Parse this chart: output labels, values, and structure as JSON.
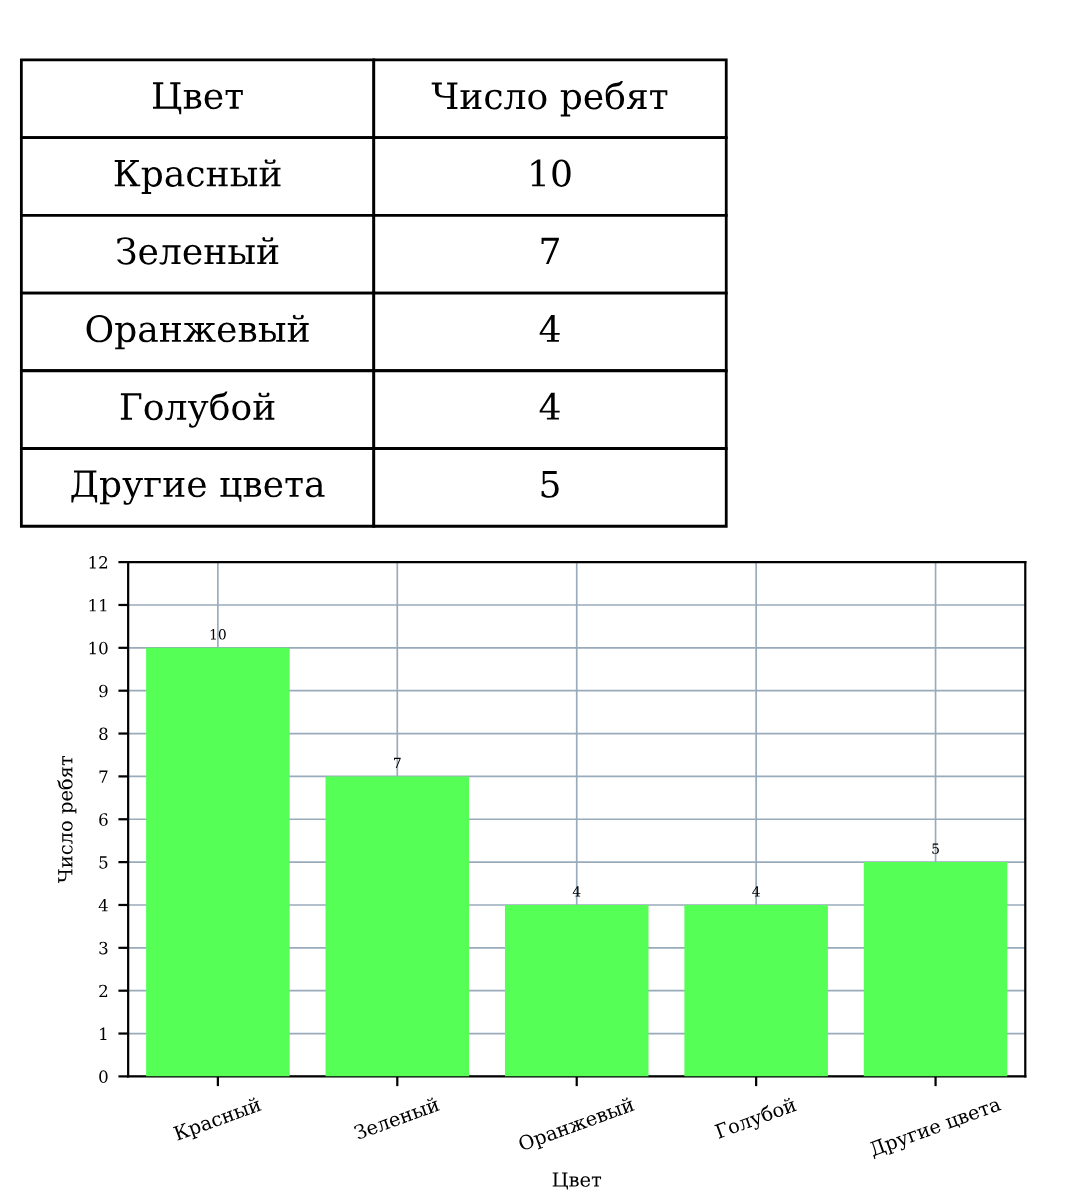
{
  "chart_data": {
    "type": "bar",
    "xlabel": "Цвет",
    "ylabel": "Число ребят",
    "categories": [
      "Красный",
      "Зеленый",
      "Оранжевый",
      "Голубой",
      "Другие цвета"
    ],
    "values": [
      10,
      7,
      4,
      4,
      5
    ],
    "color": "#55ff55",
    "ylim": [
      0,
      12
    ],
    "yticks": [
      0,
      1,
      2,
      3,
      4,
      5,
      6,
      7,
      8,
      9,
      10,
      11,
      12
    ],
    "value_labels": [
      "10",
      "7",
      "4",
      "4",
      "5"
    ],
    "grid": true
  }
}
